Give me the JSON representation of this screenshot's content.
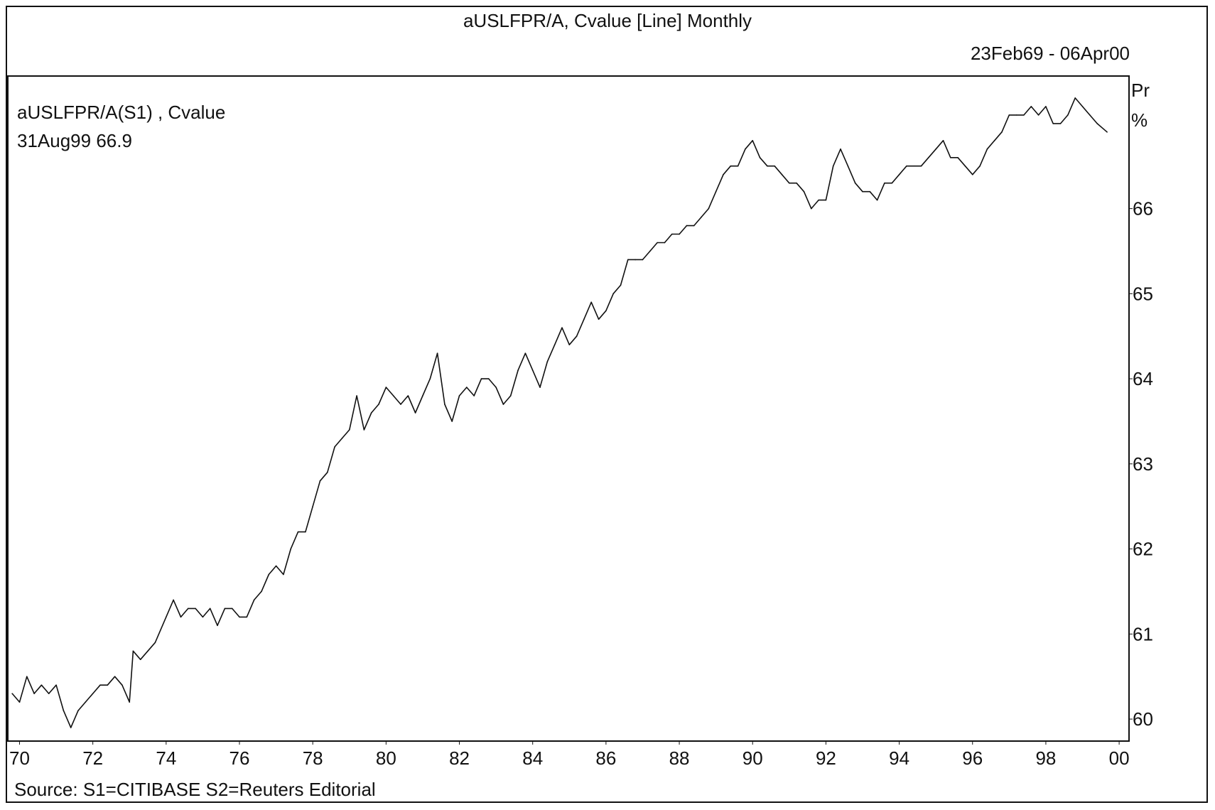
{
  "chart_data": {
    "type": "line",
    "title": "aUSLFPR/A, Cvalue [Line] Monthly",
    "date_range": "23Feb69 - 06Apr00",
    "series_label": "aUSLFPR/A(S1) , Cvalue",
    "last_value_label": "31Aug99 66.9",
    "y_unit_label_1": "Pr",
    "y_unit_label_2": "%",
    "source": "Source: S1=CITIBASE S2=Reuters Editorial",
    "x_tick_labels": [
      "70",
      "72",
      "74",
      "76",
      "78",
      "80",
      "82",
      "84",
      "86",
      "88",
      "90",
      "92",
      "94",
      "96",
      "98",
      "00"
    ],
    "y_tick_labels": [
      "60",
      "61",
      "62",
      "63",
      "64",
      "65",
      "66"
    ],
    "ylim": [
      59.75,
      67.55
    ],
    "xlim": [
      1969.7,
      2000.25
    ],
    "grid": false,
    "series": [
      {
        "values": [
          [
            1969.8,
            60.3
          ],
          [
            1970.0,
            60.2
          ],
          [
            1970.2,
            60.5
          ],
          [
            1970.4,
            60.3
          ],
          [
            1970.6,
            60.4
          ],
          [
            1970.8,
            60.3
          ],
          [
            1971.0,
            60.4
          ],
          [
            1971.2,
            60.1
          ],
          [
            1971.4,
            59.9
          ],
          [
            1971.6,
            60.1
          ],
          [
            1971.8,
            60.2
          ],
          [
            1972.0,
            60.3
          ],
          [
            1972.2,
            60.4
          ],
          [
            1972.4,
            60.4
          ],
          [
            1972.6,
            60.5
          ],
          [
            1972.8,
            60.4
          ],
          [
            1973.0,
            60.2
          ],
          [
            1973.1,
            60.8
          ],
          [
            1973.3,
            60.7
          ],
          [
            1973.5,
            60.8
          ],
          [
            1973.7,
            60.9
          ],
          [
            1974.0,
            61.2
          ],
          [
            1974.2,
            61.4
          ],
          [
            1974.4,
            61.2
          ],
          [
            1974.6,
            61.3
          ],
          [
            1974.8,
            61.3
          ],
          [
            1975.0,
            61.2
          ],
          [
            1975.2,
            61.3
          ],
          [
            1975.4,
            61.1
          ],
          [
            1975.6,
            61.3
          ],
          [
            1975.8,
            61.3
          ],
          [
            1976.0,
            61.2
          ],
          [
            1976.2,
            61.2
          ],
          [
            1976.4,
            61.4
          ],
          [
            1976.6,
            61.5
          ],
          [
            1976.8,
            61.7
          ],
          [
            1977.0,
            61.8
          ],
          [
            1977.2,
            61.7
          ],
          [
            1977.4,
            62.0
          ],
          [
            1977.6,
            62.2
          ],
          [
            1977.8,
            62.2
          ],
          [
            1978.0,
            62.5
          ],
          [
            1978.2,
            62.8
          ],
          [
            1978.4,
            62.9
          ],
          [
            1978.6,
            63.2
          ],
          [
            1978.8,
            63.3
          ],
          [
            1979.0,
            63.4
          ],
          [
            1979.2,
            63.8
          ],
          [
            1979.4,
            63.4
          ],
          [
            1979.6,
            63.6
          ],
          [
            1979.8,
            63.7
          ],
          [
            1980.0,
            63.9
          ],
          [
            1980.2,
            63.8
          ],
          [
            1980.4,
            63.7
          ],
          [
            1980.6,
            63.8
          ],
          [
            1980.8,
            63.6
          ],
          [
            1981.0,
            63.8
          ],
          [
            1981.2,
            64.0
          ],
          [
            1981.4,
            64.3
          ],
          [
            1981.6,
            63.7
          ],
          [
            1981.8,
            63.5
          ],
          [
            1982.0,
            63.8
          ],
          [
            1982.2,
            63.9
          ],
          [
            1982.4,
            63.8
          ],
          [
            1982.6,
            64.0
          ],
          [
            1982.8,
            64.0
          ],
          [
            1983.0,
            63.9
          ],
          [
            1983.2,
            63.7
          ],
          [
            1983.4,
            63.8
          ],
          [
            1983.6,
            64.1
          ],
          [
            1983.8,
            64.3
          ],
          [
            1984.0,
            64.1
          ],
          [
            1984.2,
            63.9
          ],
          [
            1984.4,
            64.2
          ],
          [
            1984.6,
            64.4
          ],
          [
            1984.8,
            64.6
          ],
          [
            1985.0,
            64.4
          ],
          [
            1985.2,
            64.5
          ],
          [
            1985.4,
            64.7
          ],
          [
            1985.6,
            64.9
          ],
          [
            1985.8,
            64.7
          ],
          [
            1986.0,
            64.8
          ],
          [
            1986.2,
            65.0
          ],
          [
            1986.4,
            65.1
          ],
          [
            1986.6,
            65.4
          ],
          [
            1986.8,
            65.4
          ],
          [
            1987.0,
            65.4
          ],
          [
            1987.2,
            65.5
          ],
          [
            1987.4,
            65.6
          ],
          [
            1987.6,
            65.6
          ],
          [
            1987.8,
            65.7
          ],
          [
            1988.0,
            65.7
          ],
          [
            1988.2,
            65.8
          ],
          [
            1988.4,
            65.8
          ],
          [
            1988.6,
            65.9
          ],
          [
            1988.8,
            66.0
          ],
          [
            1989.0,
            66.2
          ],
          [
            1989.2,
            66.4
          ],
          [
            1989.4,
            66.5
          ],
          [
            1989.6,
            66.5
          ],
          [
            1989.8,
            66.7
          ],
          [
            1990.0,
            66.8
          ],
          [
            1990.2,
            66.6
          ],
          [
            1990.4,
            66.5
          ],
          [
            1990.6,
            66.5
          ],
          [
            1990.8,
            66.4
          ],
          [
            1991.0,
            66.3
          ],
          [
            1991.2,
            66.3
          ],
          [
            1991.4,
            66.2
          ],
          [
            1991.6,
            66.0
          ],
          [
            1991.8,
            66.1
          ],
          [
            1992.0,
            66.1
          ],
          [
            1992.2,
            66.5
          ],
          [
            1992.4,
            66.7
          ],
          [
            1992.6,
            66.5
          ],
          [
            1992.8,
            66.3
          ],
          [
            1993.0,
            66.2
          ],
          [
            1993.2,
            66.2
          ],
          [
            1993.4,
            66.1
          ],
          [
            1993.6,
            66.3
          ],
          [
            1993.8,
            66.3
          ],
          [
            1994.0,
            66.4
          ],
          [
            1994.2,
            66.5
          ],
          [
            1994.4,
            66.5
          ],
          [
            1994.6,
            66.5
          ],
          [
            1994.8,
            66.6
          ],
          [
            1995.0,
            66.7
          ],
          [
            1995.2,
            66.8
          ],
          [
            1995.4,
            66.6
          ],
          [
            1995.6,
            66.6
          ],
          [
            1995.8,
            66.5
          ],
          [
            1996.0,
            66.4
          ],
          [
            1996.2,
            66.5
          ],
          [
            1996.4,
            66.7
          ],
          [
            1996.6,
            66.8
          ],
          [
            1996.8,
            66.9
          ],
          [
            1997.0,
            67.1
          ],
          [
            1997.2,
            67.1
          ],
          [
            1997.4,
            67.1
          ],
          [
            1997.6,
            67.2
          ],
          [
            1997.8,
            67.1
          ],
          [
            1998.0,
            67.2
          ],
          [
            1998.2,
            67.0
          ],
          [
            1998.4,
            67.0
          ],
          [
            1998.6,
            67.1
          ],
          [
            1998.8,
            67.3
          ],
          [
            1999.0,
            67.2
          ],
          [
            1999.2,
            67.1
          ],
          [
            1999.4,
            67.0
          ],
          [
            1999.67,
            66.9
          ]
        ]
      }
    ]
  }
}
